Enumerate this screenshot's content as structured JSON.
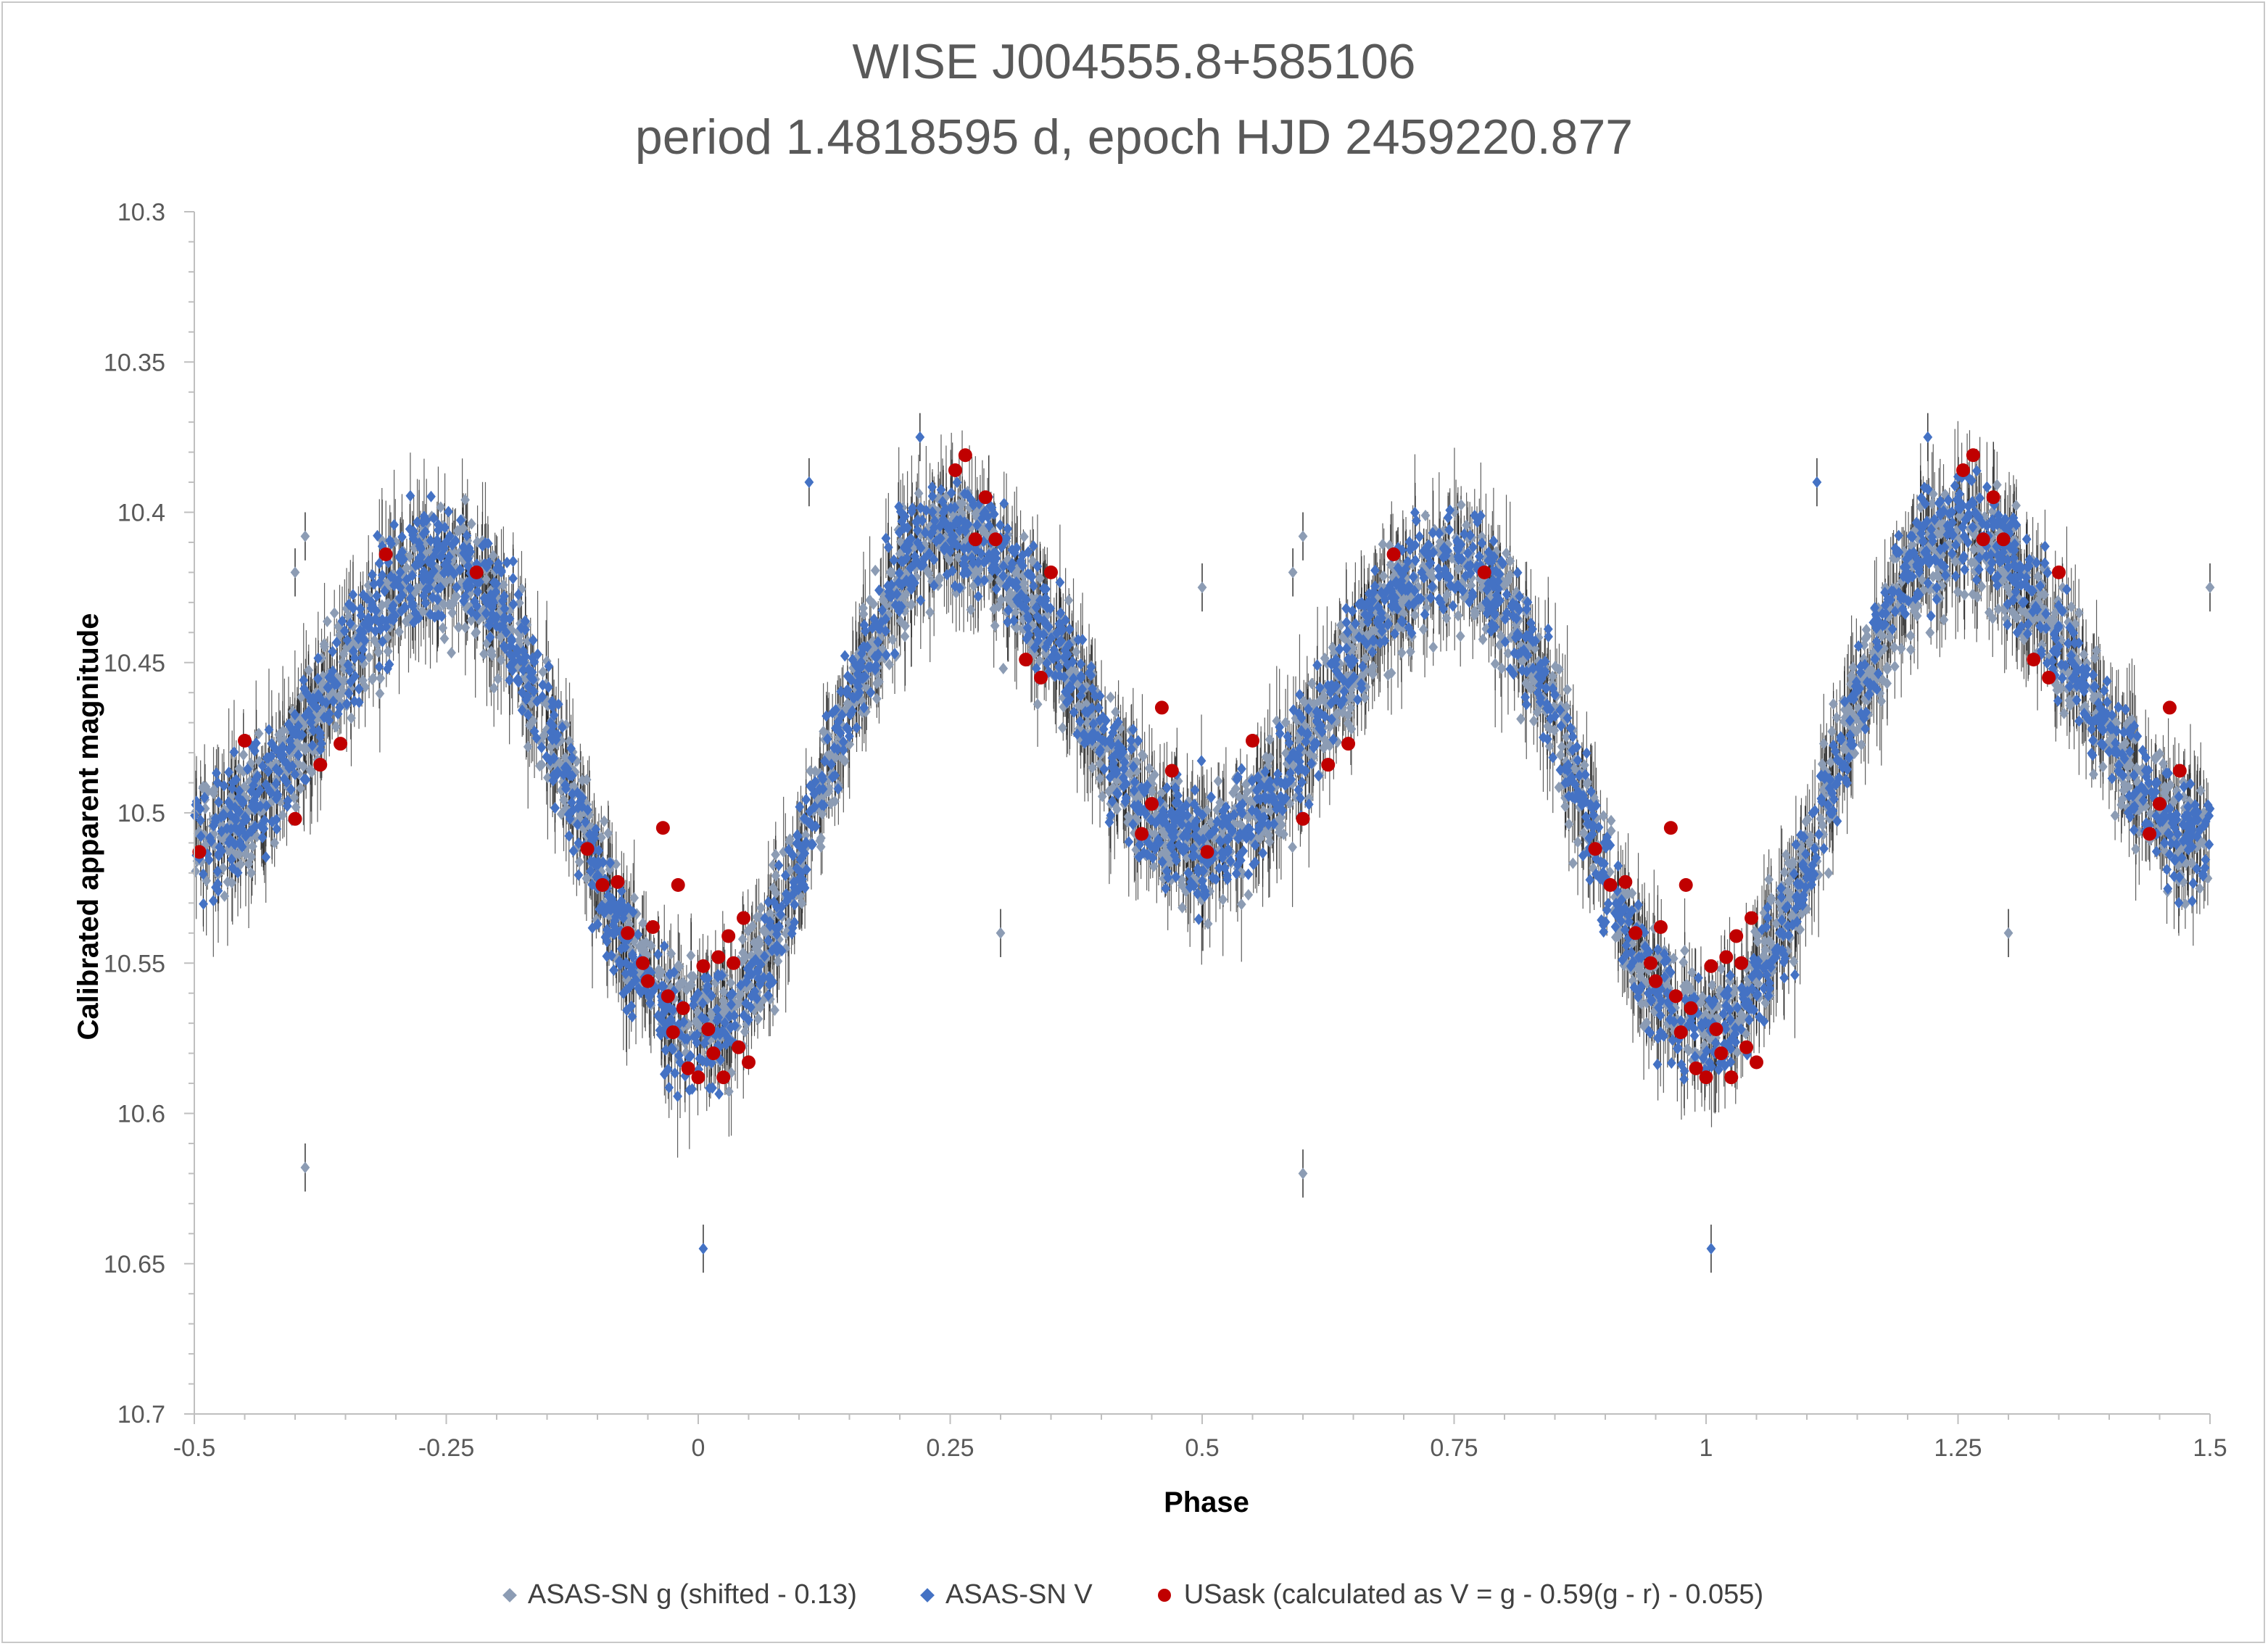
{
  "chart_data": {
    "type": "scatter",
    "title": "WISE J004555.8+585106",
    "subtitle": "period 1.4818595 d,   epoch HJD 2459220.877",
    "xlabel": "Phase",
    "ylabel": "Calibrated apparent magnitude",
    "xlim": [
      -0.5,
      1.5
    ],
    "ylim": [
      10.3,
      10.7
    ],
    "y_inverted": true,
    "x_ticks": [
      "-0.5",
      "-0.25",
      "0",
      "0.25",
      "0.5",
      "0.75",
      "1",
      "1.25",
      "1.5"
    ],
    "y_ticks": [
      "10.3",
      "10.35",
      "10.4",
      "10.45",
      "10.5",
      "10.55",
      "10.6",
      "10.65",
      "10.7"
    ],
    "grid": false,
    "legend_position": "bottom",
    "series": [
      {
        "name": "ASAS-SN g (shifted - 0.13)",
        "marker": "diamond",
        "color": "#8c9cb4",
        "light_curve_model": {
          "phase_min_1": 0.0,
          "mag_min_1": 10.57,
          "phase_max_1": 0.25,
          "mag_max_1": 10.41,
          "phase_min_2": 0.5,
          "mag_min_2": 10.51,
          "phase_max_2": 0.75,
          "mag_max_2": 10.42,
          "scatter": 0.02,
          "typical_error": 0.012
        },
        "outliers": [
          [
            -0.39,
            10.618
          ],
          [
            -0.39,
            10.408
          ],
          [
            -0.4,
            10.42
          ],
          [
            0.6,
            10.62
          ],
          [
            0.6,
            10.408
          ],
          [
            0.59,
            10.42
          ],
          [
            0.3,
            10.54
          ],
          [
            1.3,
            10.54
          ],
          [
            0.5,
            10.425
          ],
          [
            1.5,
            10.425
          ]
        ]
      },
      {
        "name": "ASAS-SN V",
        "marker": "diamond",
        "color": "#4472c4",
        "light_curve_model": {
          "phase_min_1": 0.0,
          "mag_min_1": 10.575,
          "phase_max_1": 0.25,
          "mag_max_1": 10.405,
          "phase_min_2": 0.5,
          "mag_min_2": 10.51,
          "phase_max_2": 0.75,
          "mag_max_2": 10.415,
          "scatter": 0.018,
          "typical_error": 0.012
        },
        "outliers": [
          [
            0.005,
            10.645
          ],
          [
            1.005,
            10.645
          ],
          [
            0.22,
            10.375
          ],
          [
            1.22,
            10.375
          ],
          [
            0.11,
            10.39
          ],
          [
            1.11,
            10.39
          ]
        ]
      },
      {
        "name": "USask (calculated as V = g - 0.59(g - r) - 0.055)",
        "marker": "circle",
        "color": "#c00000",
        "points": [
          [
            -0.495,
            10.513
          ],
          [
            -0.45,
            10.476
          ],
          [
            -0.4,
            10.502
          ],
          [
            -0.375,
            10.484
          ],
          [
            -0.355,
            10.477
          ],
          [
            -0.31,
            10.414
          ],
          [
            -0.22,
            10.42
          ],
          [
            -0.11,
            10.512
          ],
          [
            -0.095,
            10.524
          ],
          [
            -0.08,
            10.523
          ],
          [
            -0.07,
            10.54
          ],
          [
            -0.055,
            10.55
          ],
          [
            -0.05,
            10.556
          ],
          [
            -0.045,
            10.538
          ],
          [
            -0.035,
            10.505
          ],
          [
            -0.03,
            10.561
          ],
          [
            -0.025,
            10.573
          ],
          [
            -0.02,
            10.524
          ],
          [
            -0.015,
            10.565
          ],
          [
            -0.01,
            10.585
          ],
          [
            0.0,
            10.588
          ],
          [
            0.005,
            10.551
          ],
          [
            0.01,
            10.572
          ],
          [
            0.015,
            10.58
          ],
          [
            0.02,
            10.548
          ],
          [
            0.025,
            10.588
          ],
          [
            0.03,
            10.541
          ],
          [
            0.035,
            10.55
          ],
          [
            0.04,
            10.578
          ],
          [
            0.045,
            10.535
          ],
          [
            0.05,
            10.583
          ],
          [
            0.255,
            10.386
          ],
          [
            0.265,
            10.381
          ],
          [
            0.275,
            10.409
          ],
          [
            0.285,
            10.395
          ],
          [
            0.295,
            10.409
          ],
          [
            0.325,
            10.449
          ],
          [
            0.34,
            10.455
          ],
          [
            0.35,
            10.42
          ],
          [
            0.44,
            10.507
          ],
          [
            0.45,
            10.497
          ],
          [
            0.46,
            10.465
          ],
          [
            0.47,
            10.486
          ],
          [
            0.505,
            10.513
          ],
          [
            0.55,
            10.476
          ],
          [
            0.6,
            10.502
          ],
          [
            0.625,
            10.484
          ],
          [
            0.645,
            10.477
          ],
          [
            0.69,
            10.414
          ],
          [
            0.78,
            10.42
          ],
          [
            0.89,
            10.512
          ],
          [
            0.905,
            10.524
          ],
          [
            0.92,
            10.523
          ],
          [
            0.93,
            10.54
          ],
          [
            0.945,
            10.55
          ],
          [
            0.95,
            10.556
          ],
          [
            0.955,
            10.538
          ],
          [
            0.965,
            10.505
          ],
          [
            0.97,
            10.561
          ],
          [
            0.975,
            10.573
          ],
          [
            0.98,
            10.524
          ],
          [
            0.985,
            10.565
          ],
          [
            0.99,
            10.585
          ],
          [
            1.0,
            10.588
          ],
          [
            1.005,
            10.551
          ],
          [
            1.01,
            10.572
          ],
          [
            1.015,
            10.58
          ],
          [
            1.02,
            10.548
          ],
          [
            1.025,
            10.588
          ],
          [
            1.03,
            10.541
          ],
          [
            1.035,
            10.55
          ],
          [
            1.04,
            10.578
          ],
          [
            1.045,
            10.535
          ],
          [
            1.05,
            10.583
          ],
          [
            1.255,
            10.386
          ],
          [
            1.265,
            10.381
          ],
          [
            1.275,
            10.409
          ],
          [
            1.285,
            10.395
          ],
          [
            1.295,
            10.409
          ],
          [
            1.325,
            10.449
          ],
          [
            1.34,
            10.455
          ],
          [
            1.35,
            10.42
          ],
          [
            1.44,
            10.507
          ],
          [
            1.45,
            10.497
          ],
          [
            1.46,
            10.465
          ],
          [
            1.47,
            10.486
          ]
        ]
      }
    ]
  }
}
